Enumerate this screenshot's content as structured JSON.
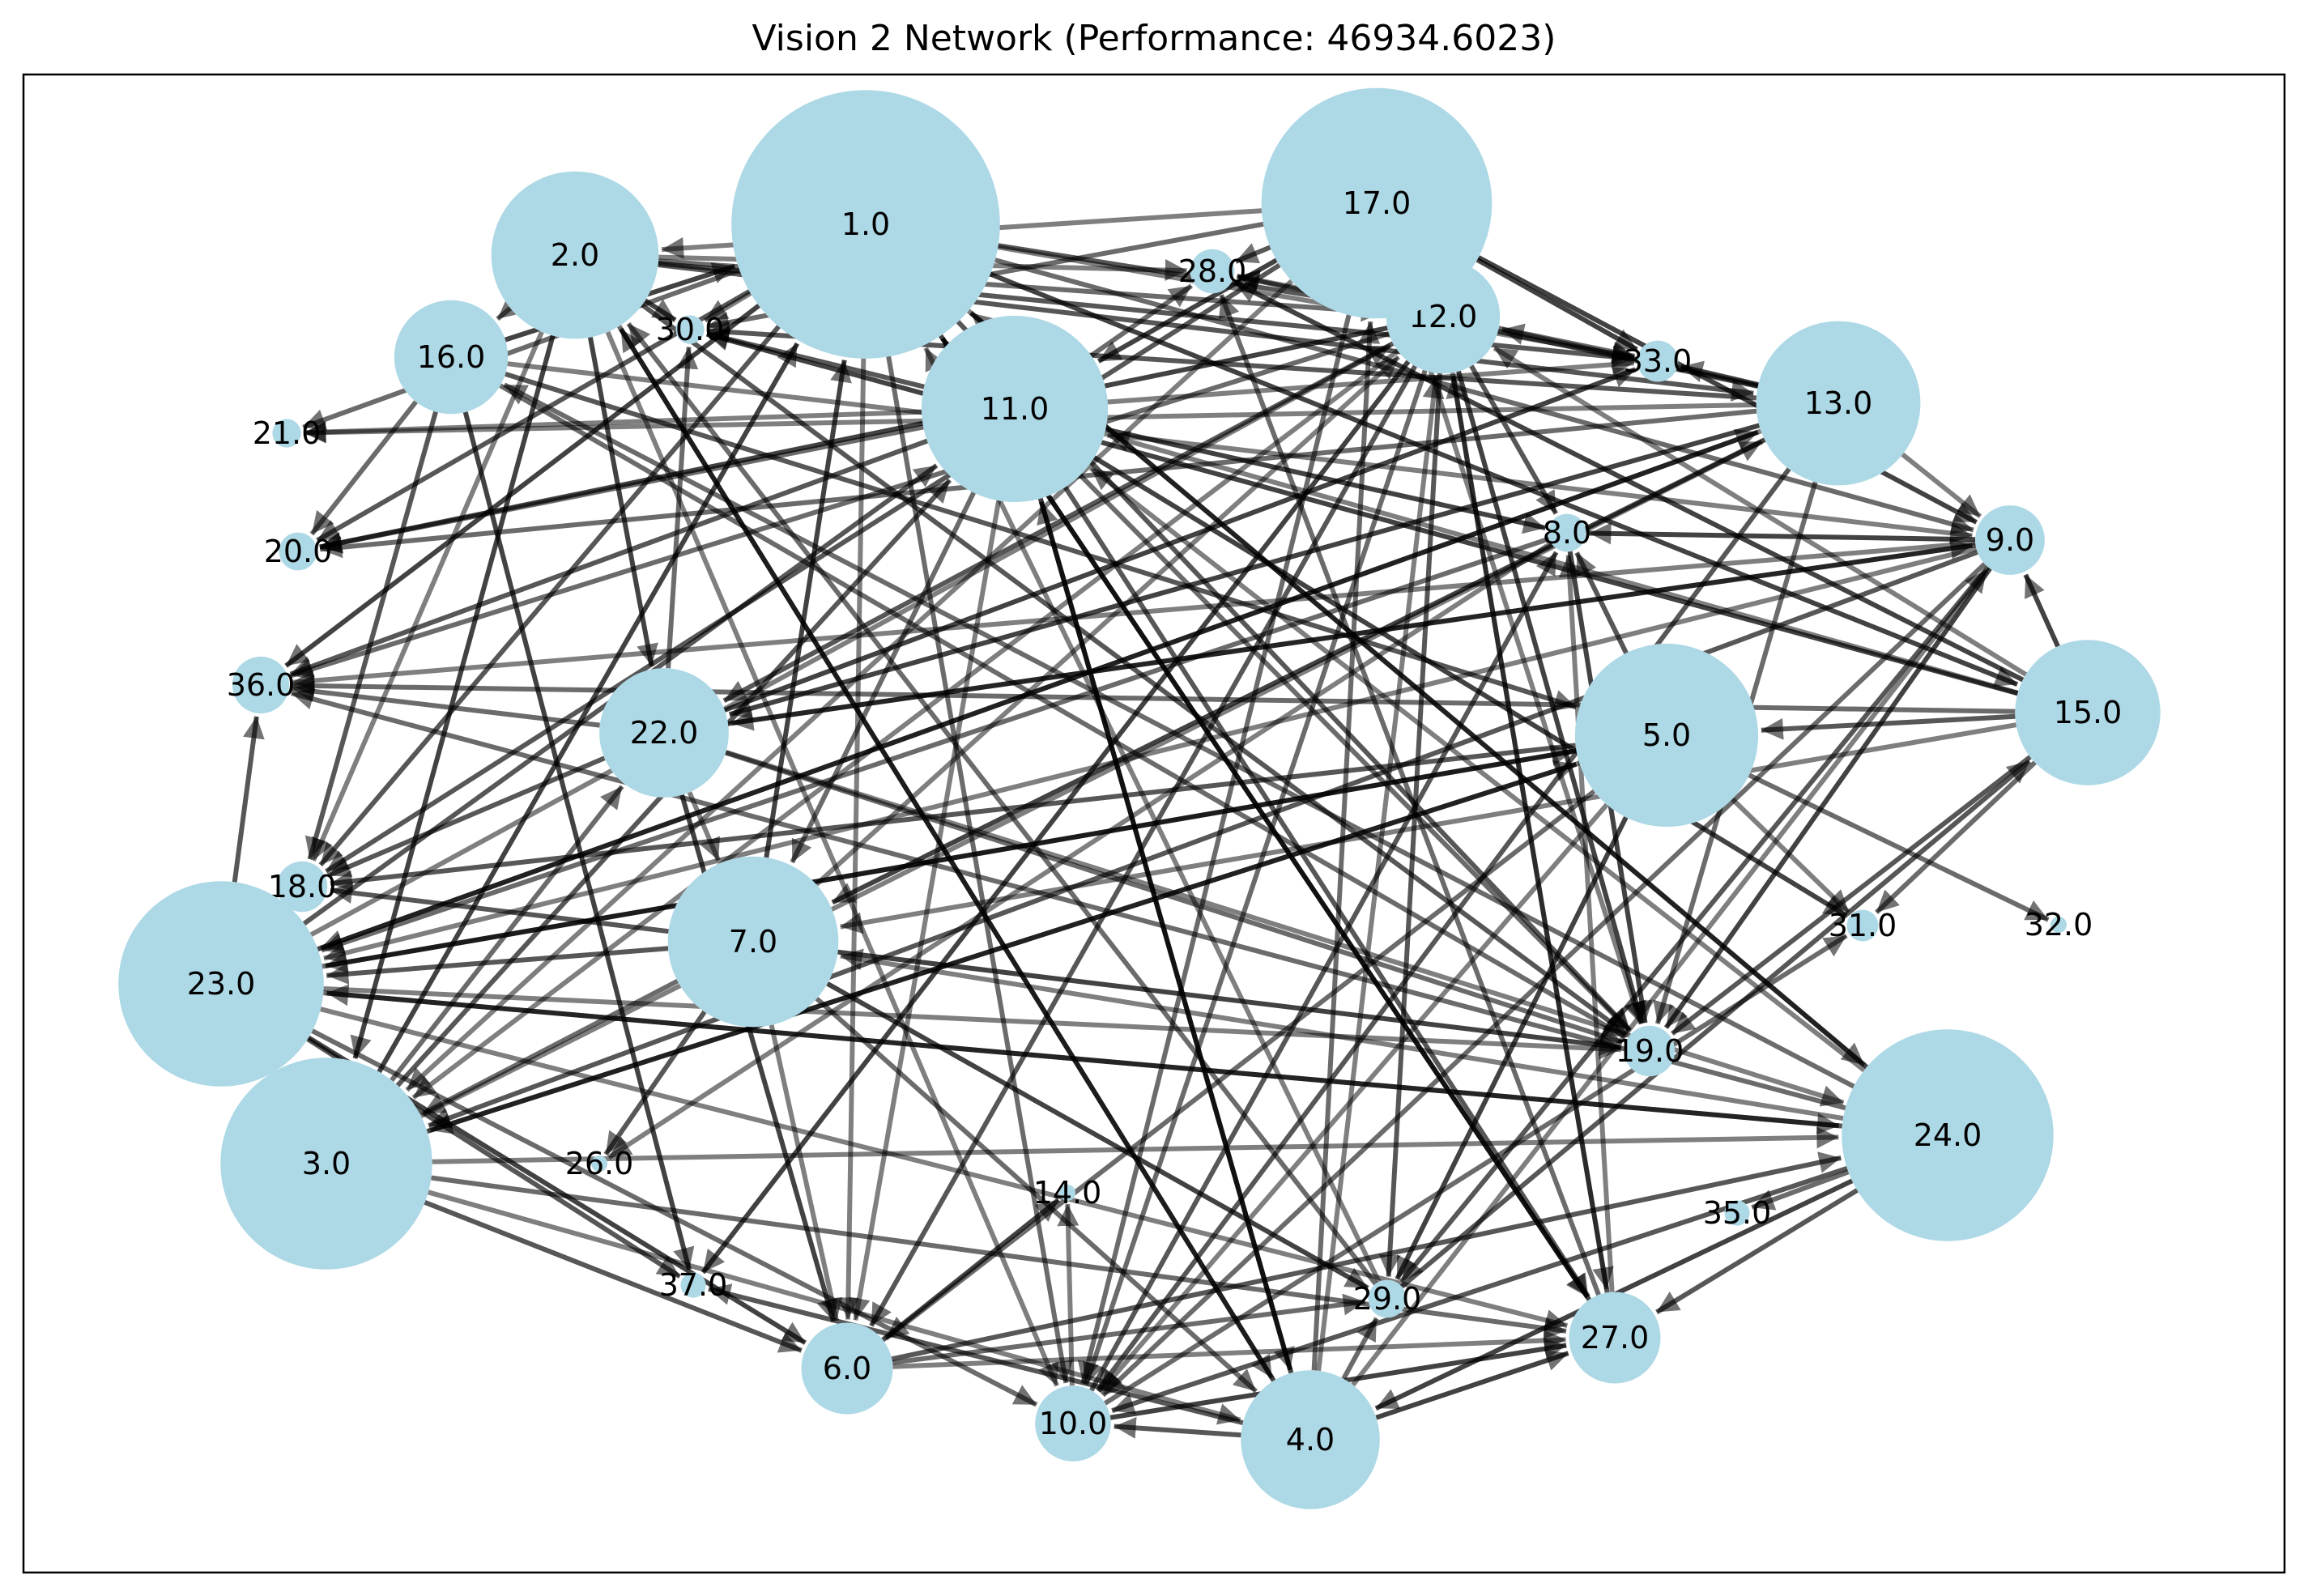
{
  "title": "Vision 2 Network (Performance: 46934.6023)",
  "colors": {
    "node": "#add8e6",
    "edge": "#000000",
    "frame": "#000000",
    "background": "#ffffff"
  },
  "nodes": [
    {
      "id": "1",
      "label": "1.0",
      "size": 8.5
    },
    {
      "id": "2",
      "label": "2.0",
      "size": 5.3
    },
    {
      "id": "3",
      "label": "3.0",
      "size": 6.7
    },
    {
      "id": "4",
      "label": "4.0",
      "size": 4.4
    },
    {
      "id": "5",
      "label": "5.0",
      "size": 5.8
    },
    {
      "id": "6",
      "label": "6.0",
      "size": 2.9
    },
    {
      "id": "7",
      "label": "7.0",
      "size": 5.4
    },
    {
      "id": "8",
      "label": "8.0",
      "size": 1.2
    },
    {
      "id": "9",
      "label": "9.0",
      "size": 2.2
    },
    {
      "id": "10",
      "label": "10.0",
      "size": 2.4
    },
    {
      "id": "11",
      "label": "11.0",
      "size": 5.9
    },
    {
      "id": "12",
      "label": "12.0",
      "size": 3.6
    },
    {
      "id": "13",
      "label": "13.0",
      "size": 5.2
    },
    {
      "id": "14",
      "label": "14.0",
      "size": 0.5
    },
    {
      "id": "15",
      "label": "15.0",
      "size": 4.6
    },
    {
      "id": "16",
      "label": "16.0",
      "size": 3.6
    },
    {
      "id": "17",
      "label": "17.0",
      "size": 7.3
    },
    {
      "id": "18",
      "label": "18.0",
      "size": 1.6
    },
    {
      "id": "19",
      "label": "19.0",
      "size": 1.6
    },
    {
      "id": "20",
      "label": "20.0",
      "size": 1.2
    },
    {
      "id": "21",
      "label": "21.0",
      "size": 0.9
    },
    {
      "id": "22",
      "label": "22.0",
      "size": 4.1
    },
    {
      "id": "23",
      "label": "23.0",
      "size": 6.5
    },
    {
      "id": "24",
      "label": "24.0",
      "size": 6.7
    },
    {
      "id": "26",
      "label": "26.0",
      "size": 0.5
    },
    {
      "id": "27",
      "label": "27.0",
      "size": 2.9
    },
    {
      "id": "28",
      "label": "28.0",
      "size": 1.4
    },
    {
      "id": "29",
      "label": "29.0",
      "size": 1.2
    },
    {
      "id": "30",
      "label": "30.0",
      "size": 0.9
    },
    {
      "id": "31",
      "label": "31.0",
      "size": 1.0
    },
    {
      "id": "32",
      "label": "32.0",
      "size": 0.5
    },
    {
      "id": "33",
      "label": "33.0",
      "size": 1.3
    },
    {
      "id": "35",
      "label": "35.0",
      "size": 0.8
    },
    {
      "id": "36",
      "label": "36.0",
      "size": 1.8
    },
    {
      "id": "37",
      "label": "37.0",
      "size": 0.8
    }
  ],
  "edges": [
    [
      "1",
      "30"
    ],
    [
      "1",
      "21"
    ],
    [
      "1",
      "20"
    ],
    [
      "1",
      "36"
    ],
    [
      "1",
      "33"
    ],
    [
      "1",
      "9"
    ],
    [
      "1",
      "19"
    ],
    [
      "1",
      "27"
    ],
    [
      "1",
      "6"
    ],
    [
      "1",
      "10"
    ],
    [
      "1",
      "18"
    ],
    [
      "2",
      "30"
    ],
    [
      "2",
      "28"
    ],
    [
      "2",
      "12"
    ],
    [
      "2",
      "33"
    ],
    [
      "2",
      "22"
    ],
    [
      "2",
      "10"
    ],
    [
      "2",
      "4"
    ],
    [
      "2",
      "19"
    ],
    [
      "2",
      "3"
    ],
    [
      "2",
      "18"
    ],
    [
      "16",
      "20"
    ],
    [
      "16",
      "18"
    ],
    [
      "16",
      "37"
    ],
    [
      "16",
      "9"
    ],
    [
      "16",
      "19"
    ],
    [
      "16",
      "5"
    ],
    [
      "16",
      "1"
    ],
    [
      "17",
      "2"
    ],
    [
      "17",
      "30"
    ],
    [
      "17",
      "18"
    ],
    [
      "17",
      "9"
    ],
    [
      "17",
      "19"
    ],
    [
      "17",
      "10"
    ],
    [
      "17",
      "28"
    ],
    [
      "17",
      "33"
    ],
    [
      "11",
      "21"
    ],
    [
      "11",
      "20"
    ],
    [
      "11",
      "36"
    ],
    [
      "11",
      "8"
    ],
    [
      "11",
      "33"
    ],
    [
      "11",
      "19"
    ],
    [
      "11",
      "27"
    ],
    [
      "11",
      "4"
    ],
    [
      "11",
      "6"
    ],
    [
      "11",
      "28"
    ],
    [
      "11",
      "30"
    ],
    [
      "11",
      "31"
    ],
    [
      "12",
      "28"
    ],
    [
      "12",
      "33"
    ],
    [
      "12",
      "8"
    ],
    [
      "12",
      "19"
    ],
    [
      "12",
      "27"
    ],
    [
      "12",
      "10"
    ],
    [
      "12",
      "6"
    ],
    [
      "12",
      "37"
    ],
    [
      "12",
      "3"
    ],
    [
      "12",
      "36"
    ],
    [
      "12",
      "29"
    ],
    [
      "12",
      "20"
    ],
    [
      "13",
      "21"
    ],
    [
      "13",
      "20"
    ],
    [
      "13",
      "28"
    ],
    [
      "13",
      "33"
    ],
    [
      "13",
      "9"
    ],
    [
      "13",
      "19"
    ],
    [
      "13",
      "10"
    ],
    [
      "13",
      "22"
    ],
    [
      "13",
      "23"
    ],
    [
      "13",
      "12"
    ],
    [
      "13",
      "30"
    ],
    [
      "9",
      "8"
    ],
    [
      "9",
      "36"
    ],
    [
      "9",
      "10"
    ],
    [
      "9",
      "29"
    ],
    [
      "9",
      "19"
    ],
    [
      "9",
      "23"
    ],
    [
      "9",
      "22"
    ],
    [
      "9",
      "3"
    ],
    [
      "15",
      "30"
    ],
    [
      "15",
      "11"
    ],
    [
      "15",
      "31"
    ],
    [
      "15",
      "5"
    ],
    [
      "15",
      "9"
    ],
    [
      "15",
      "12"
    ],
    [
      "15",
      "36"
    ],
    [
      "15",
      "19"
    ],
    [
      "15",
      "28"
    ],
    [
      "5",
      "31"
    ],
    [
      "5",
      "32"
    ],
    [
      "5",
      "18"
    ],
    [
      "5",
      "23"
    ],
    [
      "5",
      "10"
    ],
    [
      "5",
      "6"
    ],
    [
      "5",
      "8"
    ],
    [
      "5",
      "29"
    ],
    [
      "5",
      "3"
    ],
    [
      "22",
      "36"
    ],
    [
      "22",
      "9"
    ],
    [
      "22",
      "6"
    ],
    [
      "22",
      "24"
    ],
    [
      "22",
      "19"
    ],
    [
      "22",
      "18"
    ],
    [
      "22",
      "33"
    ],
    [
      "22",
      "7"
    ],
    [
      "22",
      "30"
    ],
    [
      "23",
      "36"
    ],
    [
      "23",
      "18"
    ],
    [
      "23",
      "19"
    ],
    [
      "23",
      "24"
    ],
    [
      "23",
      "37"
    ],
    [
      "23",
      "6"
    ],
    [
      "23",
      "27"
    ],
    [
      "23",
      "5"
    ],
    [
      "23",
      "11"
    ],
    [
      "23",
      "13"
    ],
    [
      "23",
      "12"
    ],
    [
      "23",
      "10"
    ],
    [
      "7",
      "18"
    ],
    [
      "7",
      "19"
    ],
    [
      "7",
      "6"
    ],
    [
      "7",
      "4"
    ],
    [
      "7",
      "26"
    ],
    [
      "7",
      "1"
    ],
    [
      "7",
      "12"
    ],
    [
      "7",
      "3"
    ],
    [
      "7",
      "23"
    ],
    [
      "7",
      "29"
    ],
    [
      "3",
      "4"
    ],
    [
      "3",
      "27"
    ],
    [
      "3",
      "6"
    ],
    [
      "3",
      "5"
    ],
    [
      "3",
      "24"
    ],
    [
      "3",
      "22"
    ],
    [
      "3",
      "11"
    ],
    [
      "3",
      "1"
    ],
    [
      "3",
      "13"
    ],
    [
      "24",
      "35"
    ],
    [
      "24",
      "27"
    ],
    [
      "24",
      "1"
    ],
    [
      "24",
      "11"
    ],
    [
      "24",
      "36"
    ],
    [
      "24",
      "10"
    ],
    [
      "24",
      "4"
    ],
    [
      "24",
      "7"
    ],
    [
      "24",
      "16"
    ],
    [
      "24",
      "23"
    ],
    [
      "4",
      "2"
    ],
    [
      "4",
      "12"
    ],
    [
      "4",
      "17"
    ],
    [
      "4",
      "10"
    ],
    [
      "4",
      "27"
    ],
    [
      "4",
      "9"
    ],
    [
      "4",
      "29"
    ],
    [
      "4",
      "37"
    ],
    [
      "4",
      "11"
    ],
    [
      "10",
      "14"
    ],
    [
      "10",
      "31"
    ],
    [
      "10",
      "8"
    ],
    [
      "10",
      "27"
    ],
    [
      "6",
      "27"
    ],
    [
      "6",
      "29"
    ],
    [
      "6",
      "24"
    ],
    [
      "6",
      "14"
    ],
    [
      "27",
      "8"
    ],
    [
      "27",
      "28"
    ],
    [
      "27",
      "12"
    ],
    [
      "27",
      "1"
    ],
    [
      "29",
      "1"
    ],
    [
      "29",
      "2"
    ],
    [
      "29",
      "15"
    ],
    [
      "8",
      "19"
    ],
    [
      "8",
      "26"
    ],
    [
      "8",
      "23"
    ],
    [
      "1",
      "12"
    ],
    [
      "1",
      "15"
    ],
    [
      "1",
      "24"
    ],
    [
      "2",
      "16"
    ],
    [
      "2",
      "13"
    ],
    [
      "17",
      "11"
    ],
    [
      "17",
      "3"
    ],
    [
      "11",
      "7"
    ],
    [
      "12",
      "22"
    ],
    [
      "13",
      "7"
    ],
    [
      "15",
      "7"
    ]
  ]
}
